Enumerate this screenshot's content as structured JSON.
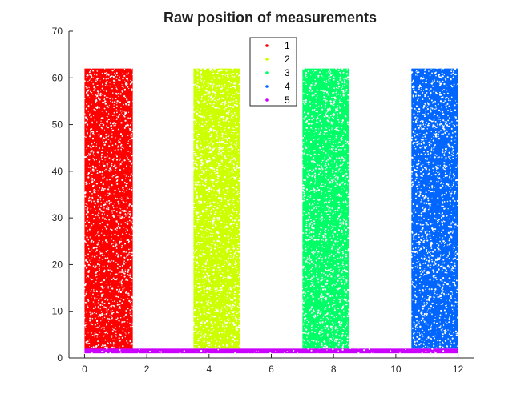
{
  "chart_data": {
    "type": "scatter",
    "title": "Raw position of measurements",
    "xlabel": "",
    "ylabel": "",
    "xlim": [
      -0.5,
      12.5
    ],
    "ylim": [
      0,
      70
    ],
    "x_ticks": [
      0,
      2,
      4,
      6,
      8,
      10,
      12
    ],
    "y_ticks": [
      0,
      10,
      20,
      30,
      40,
      50,
      60,
      70
    ],
    "grid": false,
    "legend_position": "top-center",
    "series": [
      {
        "name": "1",
        "color": "#ff0000",
        "x_range": [
          0,
          1.55
        ],
        "y_range": [
          1.5,
          62.0
        ]
      },
      {
        "name": "2",
        "color": "#ccff00",
        "x_range": [
          3.5,
          5.0
        ],
        "y_range": [
          2.0,
          62.0
        ]
      },
      {
        "name": "3",
        "color": "#00ff66",
        "x_range": [
          7.0,
          8.5
        ],
        "y_range": [
          2.0,
          62.0
        ]
      },
      {
        "name": "4",
        "color": "#0066ff",
        "x_range": [
          10.5,
          12.0
        ],
        "y_range": [
          2.0,
          62.0
        ]
      },
      {
        "name": "5",
        "color": "#cc00ff",
        "x_range": [
          0,
          12.0
        ],
        "y_range": [
          1.0,
          2.0
        ]
      }
    ]
  }
}
